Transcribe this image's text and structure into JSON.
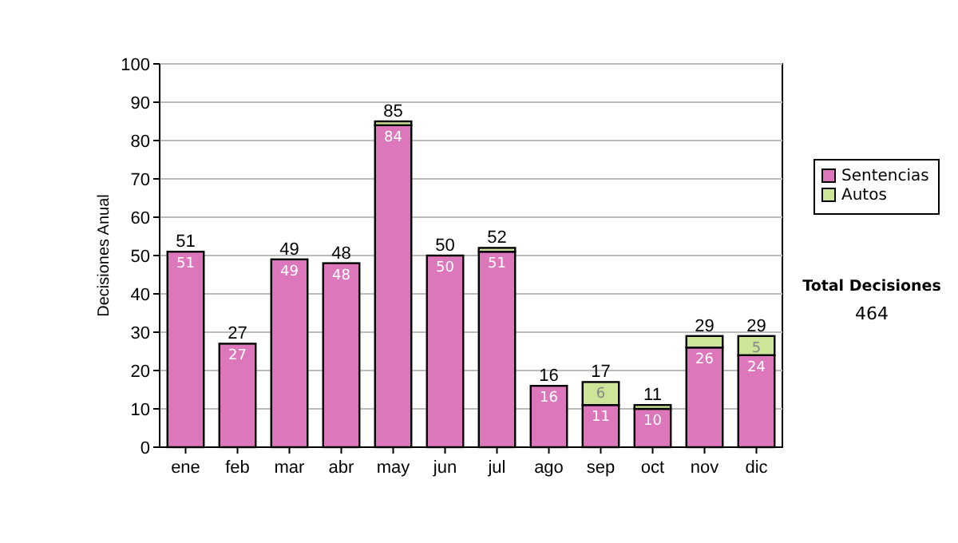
{
  "chart_data": {
    "type": "bar",
    "stacked": true,
    "ylabel": "Decisiones Anual",
    "categories": [
      "ene",
      "feb",
      "mar",
      "abr",
      "may",
      "jun",
      "jul",
      "ago",
      "sep",
      "oct",
      "nov",
      "dic"
    ],
    "series": [
      {
        "name": "Sentencias",
        "color": "#dd77bb",
        "values": [
          51,
          27,
          49,
          48,
          84,
          50,
          51,
          16,
          11,
          10,
          26,
          24
        ],
        "value_labels": [
          "51",
          "27",
          "49",
          "48",
          "84",
          "50",
          "51",
          "16",
          "11",
          "10",
          "26",
          "24"
        ]
      },
      {
        "name": "Autos",
        "color": "#cce599",
        "values": [
          0,
          0,
          0,
          0,
          1,
          0,
          1,
          0,
          6,
          1,
          3,
          5
        ],
        "value_labels": [
          null,
          null,
          null,
          null,
          null,
          null,
          null,
          null,
          "6",
          null,
          null,
          "5"
        ]
      }
    ],
    "totals": [
      "51",
      "27",
      "49",
      "48",
      "85",
      "50",
      "52",
      "16",
      "17",
      "11",
      "29",
      "29"
    ],
    "ylim": [
      0,
      100
    ],
    "yticks": [
      0,
      10,
      20,
      30,
      40,
      50,
      60,
      70,
      80,
      90,
      100
    ],
    "grid": "y",
    "legend": "right",
    "annotations": [
      "Total Decisiones",
      "464"
    ]
  }
}
